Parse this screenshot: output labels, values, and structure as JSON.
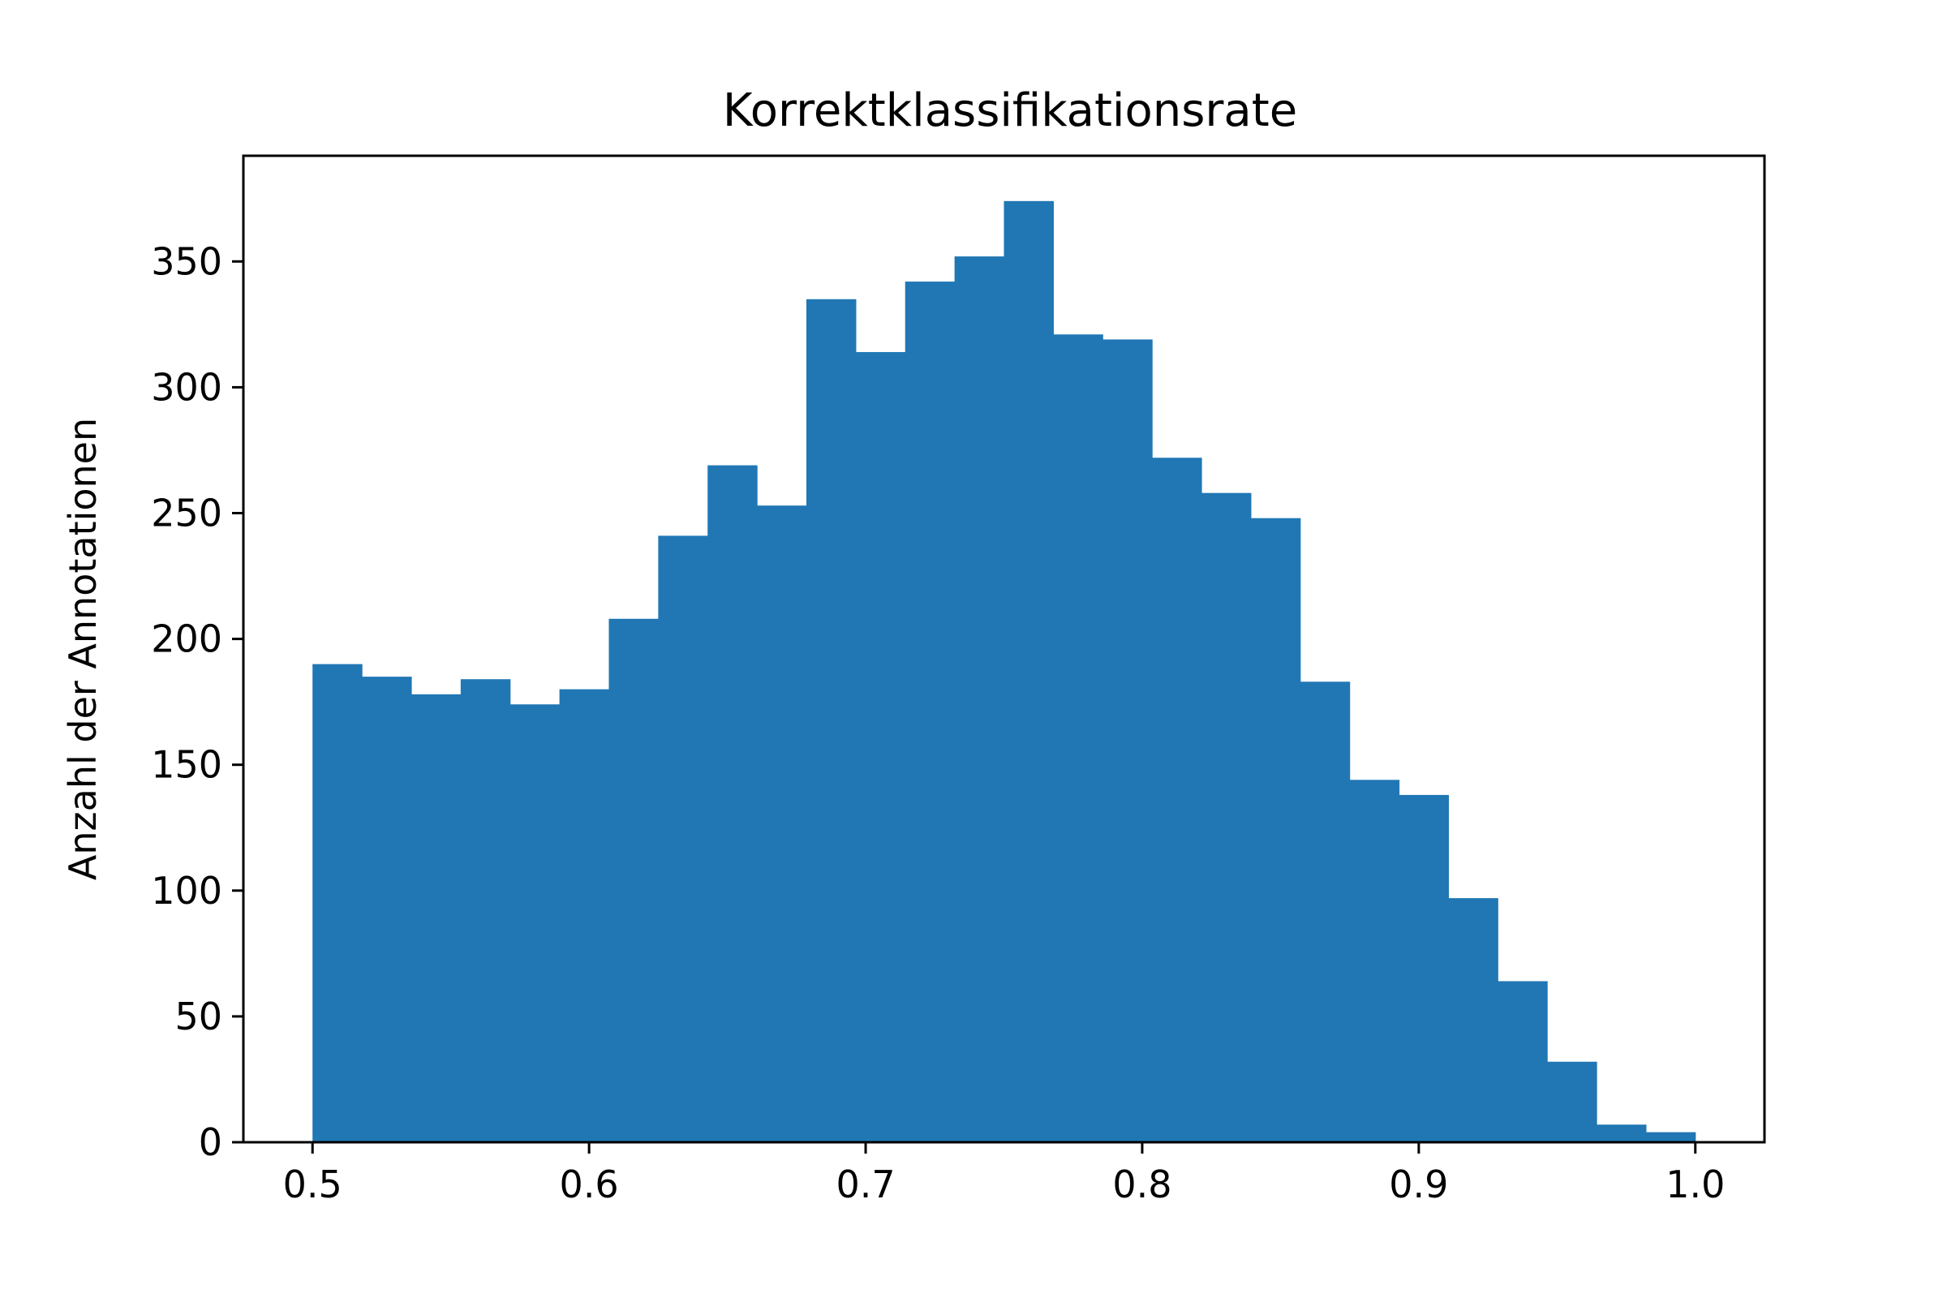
{
  "chart_data": {
    "type": "bar",
    "title": "Korrektklassifikationsrate",
    "xlabel": "",
    "ylabel": "Anzahl der Annotationen",
    "bin_start": 0.5,
    "bin_width": 0.017857,
    "values": [
      190,
      185,
      178,
      184,
      174,
      180,
      208,
      241,
      269,
      253,
      335,
      314,
      342,
      352,
      374,
      321,
      319,
      272,
      258,
      248,
      183,
      144,
      138,
      97,
      64,
      32,
      7,
      4
    ],
    "xlim": [
      0.475,
      1.025
    ],
    "ylim": [
      0,
      392
    ],
    "xticks": [
      0.5,
      0.6,
      0.7,
      0.8,
      0.9,
      1.0
    ],
    "xtick_labels": [
      "0.5",
      "0.6",
      "0.7",
      "0.8",
      "0.9",
      "1.0"
    ],
    "yticks": [
      0,
      50,
      100,
      150,
      200,
      250,
      300,
      350
    ],
    "ytick_labels": [
      "0",
      "50",
      "100",
      "150",
      "200",
      "250",
      "300",
      "350"
    ],
    "grid": false,
    "bar_color": "#2077b4"
  }
}
